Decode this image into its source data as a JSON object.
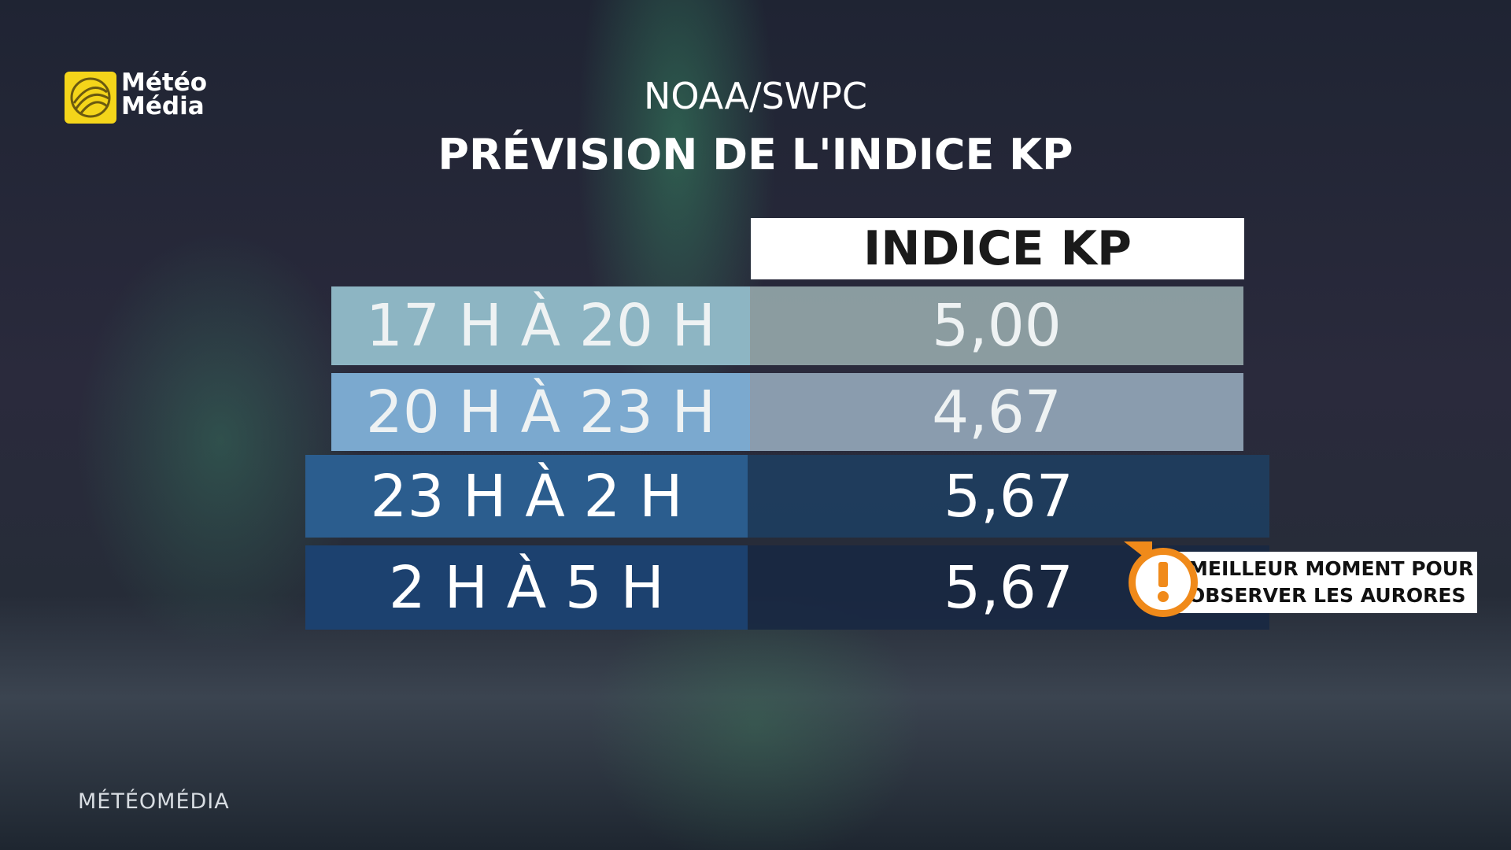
{
  "logo": {
    "line1": "Météo",
    "line2": "Média"
  },
  "header": {
    "source": "NOAA/SWPC",
    "title": "PRÉVISION DE L'INDICE KP"
  },
  "table": {
    "column_header": "INDICE KP",
    "rows": [
      [
        "17 H À 20 H",
        "5,00"
      ],
      [
        "20 H À 23 H",
        "4,67"
      ],
      [
        "23 H À 2 H",
        "5,67"
      ],
      [
        "2 H À 5 H",
        "5,67"
      ]
    ]
  },
  "callout": {
    "line1": "MEILLEUR MOMENT POUR",
    "line2": "OBSERVER LES AURORES"
  },
  "footer": {
    "brand": "MÉTÉOMÉDIA"
  }
}
